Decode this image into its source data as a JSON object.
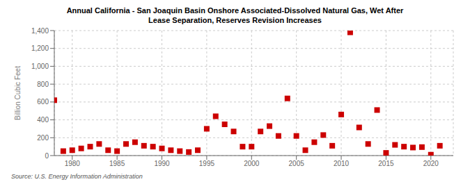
{
  "chart_data": {
    "type": "scatter",
    "title": "Annual California - San Joaquin Basin Onshore Associated-Dissolved Natural Gas, Wet After",
    "subtitle": "Lease Separation, Reserves Revision Increases",
    "ylabel": "Billion Cubic Feet",
    "source": "Source: U.S. Energy Information Administration",
    "color": "#cc0000",
    "marker": "square",
    "grid": true,
    "x": [
      1978,
      1979,
      1980,
      1981,
      1982,
      1983,
      1984,
      1985,
      1986,
      1987,
      1988,
      1989,
      1990,
      1991,
      1992,
      1993,
      1994,
      1995,
      1996,
      1997,
      1998,
      1999,
      2000,
      2001,
      2002,
      2003,
      2004,
      2005,
      2006,
      2007,
      2008,
      2009,
      2010,
      2011,
      2012,
      2013,
      2014,
      2015,
      2016,
      2017,
      2018,
      2019,
      2020,
      2021
    ],
    "values": [
      620,
      50,
      60,
      80,
      100,
      130,
      60,
      50,
      130,
      150,
      110,
      100,
      80,
      60,
      50,
      40,
      60,
      300,
      440,
      350,
      270,
      100,
      100,
      270,
      330,
      220,
      640,
      220,
      60,
      150,
      230,
      110,
      460,
      1380,
      315,
      130,
      510,
      30,
      120,
      100,
      90,
      95,
      10,
      110
    ],
    "xlim": [
      1978,
      2022.5
    ],
    "xticks": [
      1980,
      1985,
      1990,
      1995,
      2000,
      2005,
      2010,
      2015,
      2020
    ],
    "ylim": [
      0,
      1400
    ],
    "yticks": [
      0,
      200,
      400,
      600,
      800,
      {
        "value": 1000,
        "label": "1,000"
      },
      {
        "value": 1200,
        "label": "1,200"
      },
      {
        "value": 1400,
        "label": "1,400"
      }
    ]
  }
}
